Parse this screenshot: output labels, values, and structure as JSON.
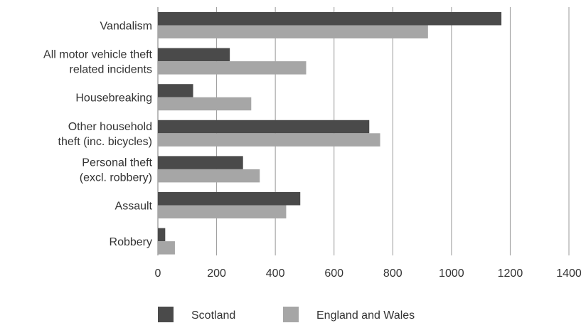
{
  "chart_data": {
    "type": "bar",
    "orientation": "horizontal",
    "title": "",
    "xlabel": "",
    "ylabel": "",
    "categories": [
      [
        "Vandalism"
      ],
      [
        "All motor vehicle theft",
        "related incidents"
      ],
      [
        "Housebreaking"
      ],
      [
        "Other household",
        "theft (inc. bicycles)"
      ],
      [
        "Personal theft",
        "(excl. robbery)"
      ],
      [
        "Assault"
      ],
      [
        "Robbery"
      ]
    ],
    "series": [
      {
        "name": "Scotland",
        "color": "#4a4a4a",
        "values": [
          1170,
          245,
          120,
          720,
          290,
          485,
          25
        ]
      },
      {
        "name": "England and Wales",
        "color": "#a6a6a6",
        "values": [
          920,
          505,
          318,
          757,
          347,
          437,
          58
        ]
      }
    ],
    "xlim": [
      0,
      1400
    ],
    "xticks": [
      "0",
      "200",
      "400",
      "600",
      "800",
      "1000",
      "1200",
      "1400"
    ],
    "grid": "vertical",
    "legend_position": "bottom"
  }
}
